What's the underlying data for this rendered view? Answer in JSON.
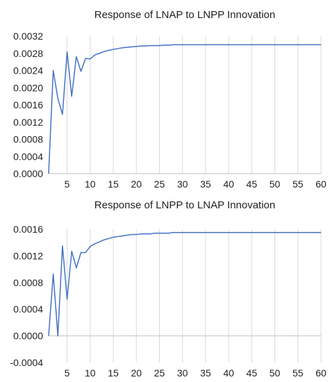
{
  "chart_data": [
    {
      "type": "line",
      "title": "Response of LNAP to LNPP Innovation",
      "xlim": [
        1,
        60
      ],
      "ylim": [
        0,
        0.0032
      ],
      "x_ticks": [
        "5",
        "10",
        "15",
        "20",
        "25",
        "30",
        "35",
        "40",
        "45",
        "50",
        "55",
        "60"
      ],
      "x_tick_values": [
        5,
        10,
        15,
        20,
        25,
        30,
        35,
        40,
        45,
        50,
        55,
        60
      ],
      "y_ticks": [
        "0.0000",
        "0.0004",
        "0.0008",
        "0.0012",
        "0.0016",
        "0.0020",
        "0.0024",
        "0.0028",
        "0.0032"
      ],
      "y_tick_values": [
        0,
        0.0004,
        0.0008,
        0.0012,
        0.0016,
        0.002,
        0.0024,
        0.0028,
        0.0032
      ],
      "grid": "vertical",
      "line_color": "#4472c4",
      "series": [
        {
          "x": [
            1,
            2,
            3,
            4,
            5,
            6,
            7,
            8,
            9,
            10,
            11,
            12,
            13,
            14,
            15,
            16,
            17,
            18,
            19,
            20,
            21,
            22,
            23,
            24,
            25,
            26,
            27,
            28,
            29,
            30,
            31,
            32,
            33,
            34,
            35,
            36,
            37,
            38,
            39,
            40,
            41,
            42,
            43,
            44,
            45,
            46,
            47,
            48,
            49,
            50,
            51,
            52,
            53,
            54,
            55,
            56,
            57,
            58,
            59,
            60
          ],
          "values": [
            0.0,
            0.0024,
            0.00175,
            0.00138,
            0.00283,
            0.0018,
            0.00272,
            0.00238,
            0.00268,
            0.00267,
            0.00276,
            0.0028,
            0.00284,
            0.00287,
            0.00289,
            0.00291,
            0.00293,
            0.00294,
            0.00295,
            0.00296,
            0.00297,
            0.00297,
            0.00298,
            0.00298,
            0.00298,
            0.00299,
            0.00299,
            0.003,
            0.003,
            0.003,
            0.003,
            0.003,
            0.003,
            0.003,
            0.003,
            0.003,
            0.003,
            0.003,
            0.003,
            0.003,
            0.003,
            0.003,
            0.003,
            0.003,
            0.003,
            0.003,
            0.003,
            0.003,
            0.003,
            0.003,
            0.003,
            0.003,
            0.003,
            0.003,
            0.003,
            0.003,
            0.003,
            0.003,
            0.003,
            0.003
          ]
        }
      ]
    },
    {
      "type": "line",
      "title": "Response of LNPP to LNAP Innovation",
      "xlim": [
        1,
        60
      ],
      "ylim": [
        -0.0004,
        0.0016
      ],
      "x_ticks": [
        "5",
        "10",
        "15",
        "20",
        "25",
        "30",
        "35",
        "40",
        "45",
        "50",
        "55",
        "60"
      ],
      "x_tick_values": [
        5,
        10,
        15,
        20,
        25,
        30,
        35,
        40,
        45,
        50,
        55,
        60
      ],
      "y_ticks": [
        "-0.0004",
        "0.0000",
        "0.0004",
        "0.0008",
        "0.0012",
        "0.0016"
      ],
      "y_tick_values": [
        -0.0004,
        0,
        0.0004,
        0.0008,
        0.0012,
        0.0016
      ],
      "grid": "vertical",
      "line_color": "#4472c4",
      "series": [
        {
          "x": [
            1,
            2,
            3,
            4,
            5,
            6,
            7,
            8,
            9,
            10,
            11,
            12,
            13,
            14,
            15,
            16,
            17,
            18,
            19,
            20,
            21,
            22,
            23,
            24,
            25,
            26,
            27,
            28,
            29,
            30,
            31,
            32,
            33,
            34,
            35,
            36,
            37,
            38,
            39,
            40,
            41,
            42,
            43,
            44,
            45,
            46,
            47,
            48,
            49,
            50,
            51,
            52,
            53,
            54,
            55,
            56,
            57,
            58,
            59,
            60
          ],
          "values": [
            0.0,
            0.00093,
            0.0,
            0.00135,
            0.00055,
            0.00127,
            0.00102,
            0.00125,
            0.00125,
            0.00134,
            0.00138,
            0.00141,
            0.00144,
            0.00146,
            0.00148,
            0.00149,
            0.0015,
            0.00151,
            0.00152,
            0.00152,
            0.00153,
            0.00153,
            0.00153,
            0.00154,
            0.00154,
            0.00154,
            0.00154,
            0.00155,
            0.00155,
            0.00155,
            0.00155,
            0.00155,
            0.00155,
            0.00155,
            0.00155,
            0.00155,
            0.00155,
            0.00155,
            0.00155,
            0.00155,
            0.00155,
            0.00155,
            0.00155,
            0.00155,
            0.00155,
            0.00155,
            0.00155,
            0.00155,
            0.00155,
            0.00155,
            0.00155,
            0.00155,
            0.00155,
            0.00155,
            0.00155,
            0.00155,
            0.00155,
            0.00155,
            0.00155,
            0.00155
          ]
        }
      ]
    }
  ]
}
